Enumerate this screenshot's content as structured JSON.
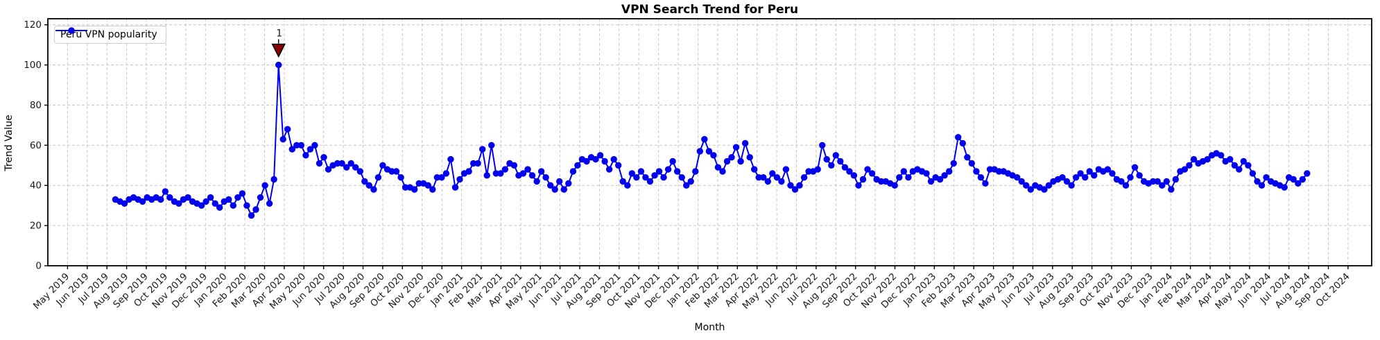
{
  "figure": {
    "background": "#ffffff"
  },
  "chart_data": {
    "type": "line",
    "title": "VPN Search Trend for Peru",
    "xlabel": "Month",
    "ylabel": "Trend Value",
    "grid": true,
    "grid_style": "dashed",
    "legend_position": "upper-left",
    "y_ticks": [
      0,
      20,
      40,
      60,
      80,
      100,
      120
    ],
    "ylim": [
      0,
      123
    ],
    "xlim_month_index": [
      -1,
      66.2
    ],
    "x_tick_labels": [
      "May 2019",
      "Jun 2019",
      "Jul 2019",
      "Aug 2019",
      "Sep 2019",
      "Oct 2019",
      "Nov 2019",
      "Dec 2019",
      "Jan 2020",
      "Feb 2020",
      "Mar 2020",
      "Apr 2020",
      "May 2020",
      "Jun 2020",
      "Jul 2020",
      "Aug 2020",
      "Sep 2020",
      "Oct 2020",
      "Nov 2020",
      "Dec 2020",
      "Jan 2021",
      "Feb 2021",
      "Mar 2021",
      "Apr 2021",
      "May 2021",
      "Jun 2021",
      "Jul 2021",
      "Aug 2021",
      "Sep 2021",
      "Oct 2021",
      "Nov 2021",
      "Dec 2021",
      "Jan 2022",
      "Feb 2022",
      "Mar 2022",
      "Apr 2022",
      "May 2022",
      "Jun 2022",
      "Jul 2022",
      "Aug 2022",
      "Sep 2022",
      "Oct 2022",
      "Nov 2022",
      "Dec 2022",
      "Jan 2023",
      "Feb 2023",
      "Mar 2023",
      "Apr 2023",
      "May 2023",
      "Jun 2023",
      "Jul 2023",
      "Aug 2023",
      "Sep 2023",
      "Oct 2023",
      "Nov 2023",
      "Dec 2023",
      "Jan 2024",
      "Feb 2024",
      "Mar 2024",
      "Apr 2024",
      "May 2024",
      "Jun 2024",
      "Jul 2024",
      "Aug 2024",
      "Sep 2024",
      "Oct 2024"
    ],
    "series": [
      {
        "name": "Peru VPN popularity",
        "color": "#0000ee",
        "marker": "circle",
        "cadence": "weekly",
        "first_point_month_index": 2.43,
        "week_step_months": 0.23,
        "values": [
          33,
          32,
          31,
          33,
          34,
          33,
          32,
          34,
          33,
          34,
          33,
          37,
          34,
          32,
          31,
          33,
          34,
          32,
          31,
          30,
          32,
          34,
          31,
          29,
          32,
          33,
          30,
          34,
          36,
          30,
          25,
          28,
          34,
          40,
          31,
          43,
          100,
          63,
          68,
          58,
          60,
          60,
          55,
          58,
          60,
          51,
          54,
          48,
          50,
          51,
          51,
          49,
          51,
          49,
          47,
          42,
          40,
          38,
          44,
          50,
          48,
          47,
          47,
          44,
          39,
          39,
          38,
          41,
          41,
          40,
          38,
          44,
          44,
          46,
          53,
          39,
          43,
          46,
          47,
          51,
          51,
          58,
          45,
          60,
          46,
          46,
          48,
          51,
          50,
          45,
          46,
          48,
          45,
          42,
          47,
          44,
          40,
          38,
          42,
          38,
          41,
          47,
          50,
          53,
          52,
          54,
          53,
          55,
          52,
          48,
          53,
          50,
          42,
          40,
          46,
          44,
          47,
          44,
          42,
          45,
          47,
          44,
          48,
          52,
          47,
          44,
          40,
          42,
          47,
          57,
          63,
          57,
          55,
          49,
          47,
          52,
          54,
          59,
          52,
          61,
          54,
          48,
          44,
          44,
          42,
          46,
          44,
          42,
          48,
          40,
          38,
          40,
          44,
          47,
          47,
          48,
          60,
          53,
          50,
          55,
          52,
          49,
          47,
          45,
          40,
          43,
          48,
          46,
          43,
          42,
          42,
          41,
          40,
          44,
          47,
          44,
          47,
          48,
          47,
          46,
          42,
          44,
          43,
          45,
          47,
          51,
          64,
          61,
          54,
          51,
          47,
          44,
          41,
          48,
          48,
          47,
          47,
          46,
          45,
          44,
          42,
          40,
          38,
          40,
          39,
          38,
          40,
          42,
          43,
          44,
          42,
          40,
          44,
          46,
          44,
          47,
          45,
          48,
          47,
          48,
          46,
          43,
          42,
          40,
          44,
          49,
          45,
          42,
          41,
          42,
          42,
          40,
          42,
          38,
          43,
          47,
          48,
          50,
          53,
          51,
          52,
          53,
          55,
          56,
          55,
          52,
          53,
          50,
          48,
          52,
          50,
          46,
          42,
          40,
          44,
          42,
          41,
          40,
          39,
          44,
          43,
          41,
          43,
          46
        ]
      }
    ],
    "annotations": [
      {
        "label": "1",
        "color": "#8b0000",
        "marker": "triangle-down",
        "series": 0,
        "point_index": 36,
        "value": 100
      }
    ]
  }
}
